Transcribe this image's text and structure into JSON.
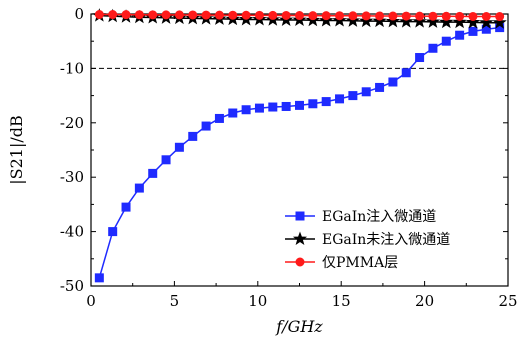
{
  "chart_data": {
    "type": "line",
    "xlabel": "f/GHz",
    "ylabel": "|S21|/dB",
    "xlim": [
      0,
      25
    ],
    "ylim": [
      -50,
      0
    ],
    "xticks": [
      0,
      5,
      10,
      15,
      20,
      25
    ],
    "yticks": [
      0,
      -10,
      -20,
      -30,
      -40,
      -50
    ],
    "reference_line": {
      "y": -10,
      "style": "dashed"
    },
    "grid": false,
    "legend_position": "bottom-right",
    "series": [
      {
        "name": "EGaIn注入微通道",
        "color": "#1f2bff",
        "marker": "square",
        "x": [
          0.5,
          1.3,
          2.1,
          2.9,
          3.7,
          4.5,
          5.3,
          6.1,
          6.9,
          7.7,
          8.5,
          9.3,
          10.1,
          10.9,
          11.7,
          12.5,
          13.3,
          14.1,
          14.9,
          15.7,
          16.5,
          17.3,
          18.1,
          18.9,
          19.7,
          20.5,
          21.3,
          22.1,
          22.9,
          23.7,
          24.5
        ],
        "values": [
          -48.5,
          -40,
          -35.5,
          -32,
          -29.3,
          -26.8,
          -24.5,
          -22.5,
          -20.6,
          -19.2,
          -18.2,
          -17.6,
          -17.3,
          -17.1,
          -17,
          -16.8,
          -16.5,
          -16.1,
          -15.6,
          -15,
          -14.3,
          -13.5,
          -12.5,
          -10.8,
          -8,
          -6.3,
          -5,
          -3.9,
          -3.2,
          -2.8,
          -2.5
        ]
      },
      {
        "name": "EGaIn未注入微通道",
        "color": "#000000",
        "marker": "star",
        "x": [
          0.5,
          1.3,
          2.1,
          2.9,
          3.7,
          4.5,
          5.3,
          6.1,
          6.9,
          7.7,
          8.5,
          9.3,
          10.1,
          10.9,
          11.7,
          12.5,
          13.3,
          14.1,
          14.9,
          15.7,
          16.5,
          17.3,
          18.1,
          18.9,
          19.7,
          20.5,
          21.3,
          22.1,
          22.9,
          23.7,
          24.5
        ],
        "values": [
          -0.3,
          -0.4,
          -0.5,
          -0.6,
          -0.65,
          -0.7,
          -0.75,
          -0.8,
          -0.85,
          -0.9,
          -0.95,
          -1.0,
          -1.0,
          -1.05,
          -1.1,
          -1.1,
          -1.15,
          -1.2,
          -1.2,
          -1.25,
          -1.3,
          -1.3,
          -1.35,
          -1.4,
          -1.4,
          -1.45,
          -1.5,
          -1.5,
          -1.55,
          -1.6,
          -1.6
        ]
      },
      {
        "name": "仅PMMA层",
        "color": "#ff1a1a",
        "marker": "circle",
        "x": [
          0.5,
          1.3,
          2.1,
          2.9,
          3.7,
          4.5,
          5.3,
          6.1,
          6.9,
          7.7,
          8.5,
          9.3,
          10.1,
          10.9,
          11.7,
          12.5,
          13.3,
          14.1,
          14.9,
          15.7,
          16.5,
          17.3,
          18.1,
          18.9,
          19.7,
          20.5,
          21.3,
          22.1,
          22.9,
          23.7,
          24.5
        ],
        "values": [
          -0.1,
          -0.1,
          -0.12,
          -0.13,
          -0.15,
          -0.16,
          -0.17,
          -0.18,
          -0.2,
          -0.21,
          -0.22,
          -0.23,
          -0.25,
          -0.26,
          -0.27,
          -0.28,
          -0.3,
          -0.31,
          -0.32,
          -0.33,
          -0.35,
          -0.36,
          -0.37,
          -0.38,
          -0.4,
          -0.41,
          -0.42,
          -0.43,
          -0.45,
          -0.46,
          -0.47
        ]
      }
    ]
  }
}
